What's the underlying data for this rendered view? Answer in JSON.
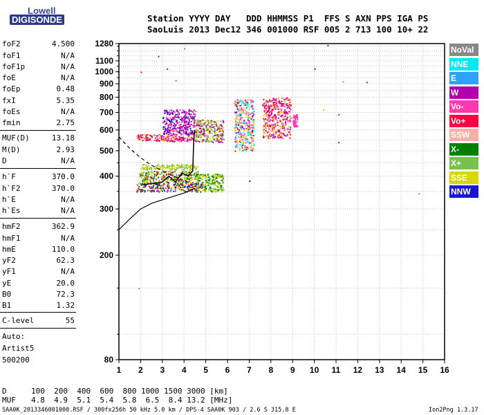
{
  "logo": {
    "line1": "Lowell",
    "line2": "DIGISONDE"
  },
  "header": {
    "line1": "Station YYYY DAY   DDD HHMMSS P1  FFS S AXN PPS IGA PS",
    "line2": "SaoLuis 2013 Dec12 346 001000 RSF 005 2 713 100 10+ 22"
  },
  "params": [
    {
      "name": "foF2",
      "value": "4.500"
    },
    {
      "name": "foF1",
      "value": "N/A"
    },
    {
      "name": "foF1p",
      "value": "N/A"
    },
    {
      "name": "foE",
      "value": "N/A"
    },
    {
      "name": "foEp",
      "value": "0.48"
    },
    {
      "name": "fxI",
      "value": "5.35"
    },
    {
      "name": "foEs",
      "value": "N/A"
    },
    {
      "name": "fmin",
      "value": "2.75"
    },
    {
      "name": "MUF(D)",
      "value": "13.18"
    },
    {
      "name": "M(D)",
      "value": "2.93"
    },
    {
      "name": "D",
      "value": "N/A"
    },
    {
      "name": "h`F",
      "value": "370.0"
    },
    {
      "name": "h`F2",
      "value": "370.0"
    },
    {
      "name": "h`E",
      "value": "N/A"
    },
    {
      "name": "h`Es",
      "value": "N/A"
    },
    {
      "name": "hmF2",
      "value": "362.9"
    },
    {
      "name": "hmF1",
      "value": "N/A"
    },
    {
      "name": "hmE",
      "value": "110.0"
    },
    {
      "name": "yF2",
      "value": "62.3"
    },
    {
      "name": "yF1",
      "value": "N/A"
    },
    {
      "name": "yE",
      "value": "20.0"
    },
    {
      "name": "B0",
      "value": "72.3"
    },
    {
      "name": "B1",
      "value": "1.32"
    },
    {
      "name": "C-level",
      "value": "55"
    }
  ],
  "auto": {
    "line1": "Auto:",
    "line2": "Artist5",
    "line3": "500200"
  },
  "legend": [
    {
      "label": "NoVal",
      "color": "#888888"
    },
    {
      "label": "NNE",
      "color": "#00e8f0"
    },
    {
      "label": "E",
      "color": "#30a0f8"
    },
    {
      "label": "W",
      "color": "#b000b0"
    },
    {
      "label": "Vo-",
      "color": "#ff38b0"
    },
    {
      "label": "Vo+",
      "color": "#ff0040"
    },
    {
      "label": "SSW",
      "color": "#f8b0a8"
    },
    {
      "label": "X-",
      "color": "#008000"
    },
    {
      "label": "X+",
      "color": "#78c050"
    },
    {
      "label": "SSE",
      "color": "#d8d800"
    },
    {
      "label": "NNW",
      "color": "#1818d0"
    }
  ],
  "footer": {
    "d_label": "D",
    "d_values": "100  200  400  600  800 1000 1500 3000 [km]",
    "muf_label": "MUF",
    "muf_values": "4.8  4.9  5.1  5.4  5.8  6.5  8.4 13.2 [MHz]",
    "note": "SAA0K_2013346001000.RSF / 300fx256h 50 kHz 5.0 km / DPS-4 SAA0K 903 / 2.6 S 315.8 E",
    "version": "Ion2Png 1.3.17"
  },
  "chart_data": {
    "type": "scatter",
    "xlim": [
      1,
      16
    ],
    "xticks": [
      "1",
      "2",
      "3",
      "4",
      "5",
      "6",
      "7",
      "8",
      "9",
      "10",
      "11",
      "12",
      "13",
      "14",
      "15",
      "16"
    ],
    "ylim": [
      80,
      1280
    ],
    "y_scale": "log",
    "yticks": [
      "80",
      "200",
      "300",
      "400",
      "500",
      "600",
      "700",
      "800",
      "900",
      "1000",
      "1100",
      "1280"
    ],
    "grid": true,
    "legend_position": "right",
    "profile_curve": [
      [
        1,
        250
      ],
      [
        1.5,
        275
      ],
      [
        2,
        300
      ],
      [
        2.5,
        315
      ],
      [
        3,
        325
      ],
      [
        3.5,
        335
      ],
      [
        4,
        345
      ],
      [
        4.5,
        360
      ]
    ],
    "dashed_curve": [
      [
        1,
        565
      ],
      [
        1.5,
        510
      ],
      [
        2,
        470
      ],
      [
        2.5,
        440
      ],
      [
        3,
        420
      ],
      [
        3.5,
        400
      ],
      [
        4,
        385
      ],
      [
        4.4,
        372
      ]
    ],
    "trace_curve": [
      [
        2,
        370
      ],
      [
        2.5,
        375
      ],
      [
        3,
        380
      ],
      [
        3.3,
        400
      ],
      [
        3.6,
        380
      ],
      [
        3.9,
        410
      ],
      [
        4.2,
        400
      ],
      [
        4.4,
        420
      ],
      [
        4.45,
        560
      ],
      [
        4.5,
        600
      ]
    ],
    "clusters": [
      {
        "x": [
          1.8,
          4.8
        ],
        "y": [
          350,
          380
        ],
        "colors": [
          "#008000",
          "#ff0040",
          "#d8d800",
          "#b000b0",
          "#1818d0"
        ]
      },
      {
        "x": [
          1.9,
          4.7
        ],
        "y": [
          380,
          420
        ],
        "colors": [
          "#d8d800",
          "#78c050",
          "#ff0040",
          "#008000"
        ]
      },
      {
        "x": [
          2.0,
          4.6
        ],
        "y": [
          425,
          445
        ],
        "colors": [
          "#d8d800",
          "#78c050"
        ]
      },
      {
        "x": [
          4.5,
          5.8
        ],
        "y": [
          350,
          410
        ],
        "colors": [
          "#008000",
          "#78c050",
          "#d8d800"
        ]
      },
      {
        "x": [
          1.8,
          4.5
        ],
        "y": [
          545,
          580
        ],
        "colors": [
          "#b000b0",
          "#ff38b0",
          "#d8d800",
          "#ff0040"
        ]
      },
      {
        "x": [
          3.0,
          4.5
        ],
        "y": [
          580,
          720
        ],
        "colors": [
          "#b000b0",
          "#1818d0",
          "#ff38b0"
        ]
      },
      {
        "x": [
          4.5,
          5.8
        ],
        "y": [
          540,
          660
        ],
        "colors": [
          "#d8d800",
          "#78c050",
          "#b000b0"
        ]
      },
      {
        "x": [
          6.3,
          7.2
        ],
        "y": [
          500,
          790
        ],
        "colors": [
          "#f8b0a8",
          "#d8d800",
          "#ff38b0",
          "#b000b0",
          "#00e8f0"
        ]
      },
      {
        "x": [
          7.6,
          8.9
        ],
        "y": [
          560,
          800
        ],
        "colors": [
          "#f8b0a8",
          "#ff38b0",
          "#d8d800",
          "#b000b0",
          "#ff0040"
        ]
      },
      {
        "x": [
          9.0,
          9.2
        ],
        "y": [
          620,
          690
        ],
        "colors": [
          "#ff38b0"
        ]
      }
    ],
    "scatter_points": [
      {
        "x": 2.0,
        "y": 1000,
        "c": "#ff0040"
      },
      {
        "x": 2.8,
        "y": 1150,
        "c": "#b000b0"
      },
      {
        "x": 3.2,
        "y": 1030,
        "c": "#ff0040"
      },
      {
        "x": 4.0,
        "y": 1230,
        "c": "#30a0f8"
      },
      {
        "x": 10.6,
        "y": 1265,
        "c": "#b000b0"
      },
      {
        "x": 10.0,
        "y": 1030,
        "c": "#1818d0"
      },
      {
        "x": 11.3,
        "y": 920,
        "c": "#78c050"
      },
      {
        "x": 12.4,
        "y": 915,
        "c": "#008000"
      },
      {
        "x": 11.1,
        "y": 690,
        "c": "#ff0040"
      },
      {
        "x": 10.4,
        "y": 720,
        "c": "#d8d800"
      },
      {
        "x": 11.1,
        "y": 540,
        "c": "#b000b0"
      },
      {
        "x": 14.8,
        "y": 345,
        "c": "#30a0f8"
      },
      {
        "x": 1.9,
        "y": 150,
        "c": "#888888"
      },
      {
        "x": 7.0,
        "y": 385,
        "c": "#1818d0"
      },
      {
        "x": 3.6,
        "y": 930,
        "c": "#ff38b0"
      }
    ]
  }
}
